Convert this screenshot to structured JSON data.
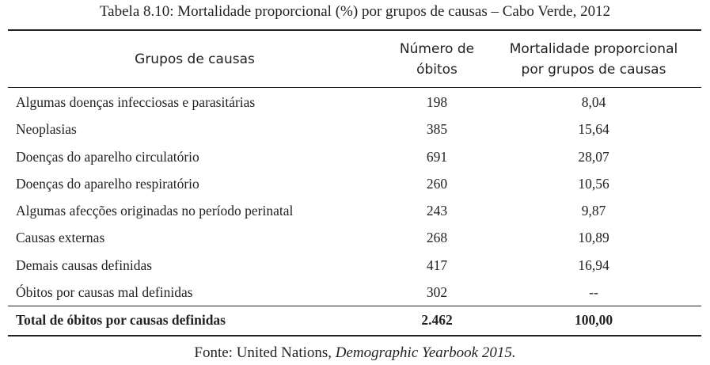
{
  "caption": "Tabela 8.10: Mortalidade proporcional (%) por grupos de causas – Cabo Verde, 2012",
  "header": {
    "col_group": "Grupos de causas",
    "col_count_line1": "Número de",
    "col_count_line2": "óbitos",
    "col_pct_line1": "Mortalidade proporcional",
    "col_pct_line2": "por grupos de causas"
  },
  "rows": [
    {
      "name": "Algumas doenças infecciosas e parasitárias",
      "count": "198",
      "pct": "8,04"
    },
    {
      "name": "Neoplasias",
      "count": "385",
      "pct": "15,64"
    },
    {
      "name": "Doenças do aparelho circulatório",
      "count": "691",
      "pct": "28,07"
    },
    {
      "name": "Doenças do aparelho respiratório",
      "count": "260",
      "pct": "10,56"
    },
    {
      "name": "Algumas afecções originadas no período perinatal",
      "count": "243",
      "pct": "9,87"
    },
    {
      "name": "Causas externas",
      "count": "268",
      "pct": "10,89"
    },
    {
      "name": "Demais causas definidas",
      "count": "417",
      "pct": "16,94"
    },
    {
      "name": "Óbitos por causas mal definidas",
      "count": "302",
      "pct": "--"
    }
  ],
  "total": {
    "name": "Total de óbitos por causas definidas",
    "count": "2.462",
    "pct": "100,00"
  },
  "source": {
    "prefix": "Fonte: United Nations,",
    "title": "Demographic Yearbook 2015."
  }
}
